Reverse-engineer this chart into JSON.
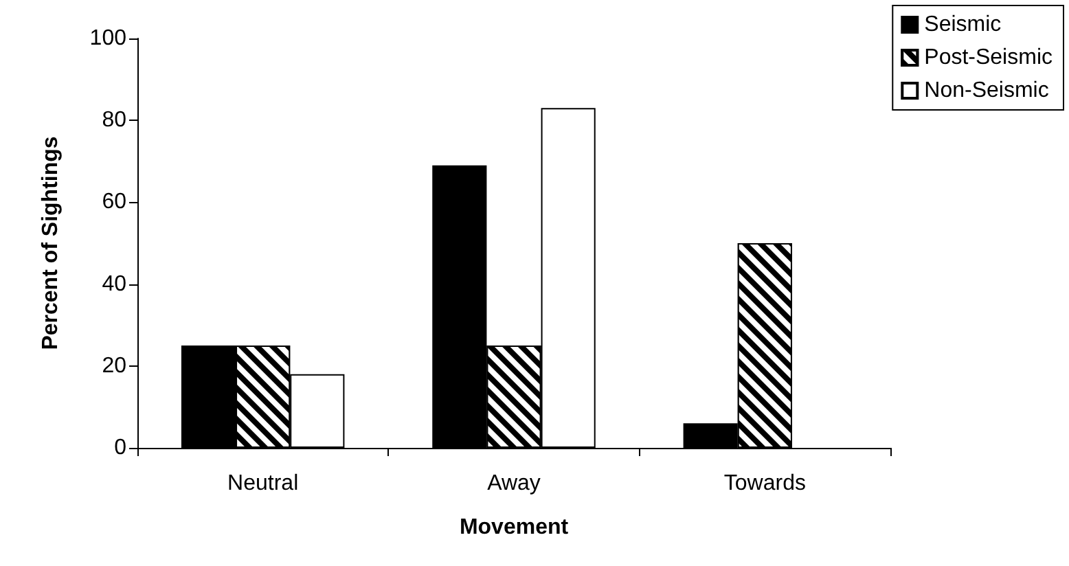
{
  "chart_data": {
    "type": "bar",
    "xlabel": "Movement",
    "ylabel": "Percent of Sightings",
    "categories": [
      "Neutral",
      "Away",
      "Towards"
    ],
    "series": [
      {
        "name": "Seismic",
        "color": "#000000",
        "values": [
          25,
          69,
          6
        ]
      },
      {
        "name": "Post-Seismic",
        "color": "#000000",
        "values": [
          25,
          25,
          50
        ]
      },
      {
        "name": "Non-Seismic",
        "color": "#ffffff",
        "values": [
          18,
          83,
          null
        ]
      }
    ],
    "ylim": [
      0,
      100
    ],
    "yticks": [
      0,
      20,
      40,
      60,
      80,
      100
    ],
    "grid": false,
    "legend": "top right"
  }
}
